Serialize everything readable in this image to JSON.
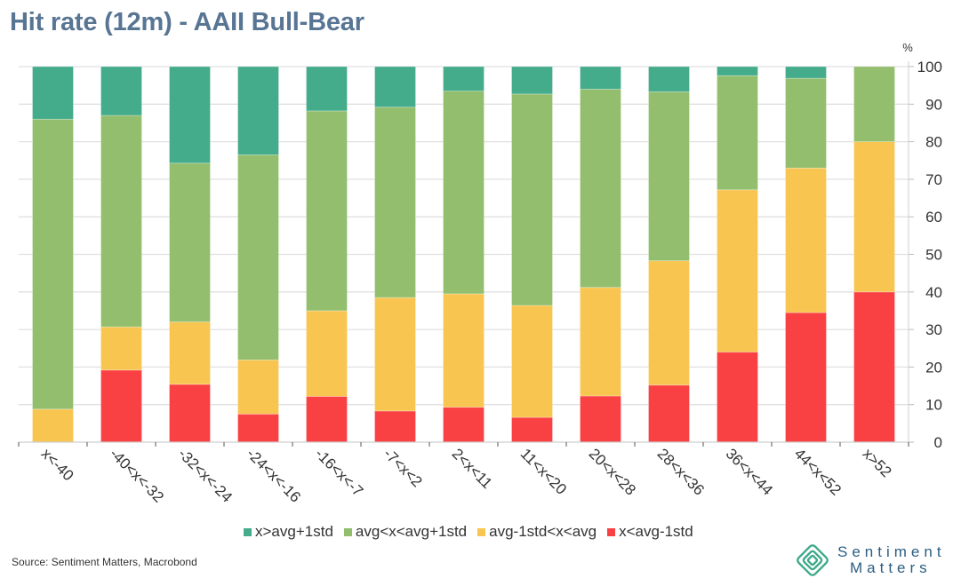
{
  "title": "Hit rate (12m) - AAII Bull-Bear",
  "source": "Source: Sentiment Matters, Macrobond",
  "logo": {
    "line1": "Sentiment",
    "line2": "Matters",
    "icon": "concentric-diamond-icon"
  },
  "chart_data": {
    "type": "bar",
    "stacked": true,
    "title": "Hit rate (12m) - AAII Bull-Bear",
    "xlabel": "",
    "ylabel": "%",
    "ylim": [
      0,
      100
    ],
    "yticks": [
      0,
      10,
      20,
      30,
      40,
      50,
      60,
      70,
      80,
      90,
      100
    ],
    "y_axis_side": "right",
    "grid": true,
    "legend_position": "bottom",
    "categories": [
      "x<-40",
      "-40<x<-32",
      "-32<x<-24",
      "-24<x<-16",
      "-16<x<-7",
      "-7<x<2",
      "2<x<11",
      "11<x<20",
      "20<x<28",
      "28<x<36",
      "36<x<44",
      "44<x<52",
      "x>52"
    ],
    "series": [
      {
        "name": "x<avg-1std",
        "color": "#f94144",
        "values": [
          0,
          19.2,
          15.4,
          7.5,
          12.2,
          8.3,
          9.3,
          6.6,
          12.3,
          15.2,
          24.0,
          34.5,
          40.0
        ]
      },
      {
        "name": "avg-1std<x<avg",
        "color": "#f8c550",
        "values": [
          8.8,
          11.5,
          16.6,
          14.4,
          22.8,
          30.2,
          30.2,
          29.8,
          28.9,
          33.1,
          43.2,
          38.5,
          40.0
        ]
      },
      {
        "name": "avg<x<avg+1std",
        "color": "#93be6d",
        "values": [
          77.2,
          56.3,
          42.3,
          54.6,
          53.2,
          50.7,
          54.0,
          56.3,
          52.8,
          45.0,
          30.4,
          23.9,
          20.0
        ]
      },
      {
        "name": "x>avg+1std",
        "color": "#44ab8b",
        "values": [
          14.0,
          13.0,
          25.7,
          23.5,
          11.8,
          10.8,
          6.5,
          7.3,
          6.0,
          6.7,
          2.4,
          3.1,
          0.0
        ]
      }
    ],
    "legend_order": [
      "x>avg+1std",
      "avg<x<avg+1std",
      "avg-1std<x<avg",
      "x<avg-1std"
    ]
  }
}
